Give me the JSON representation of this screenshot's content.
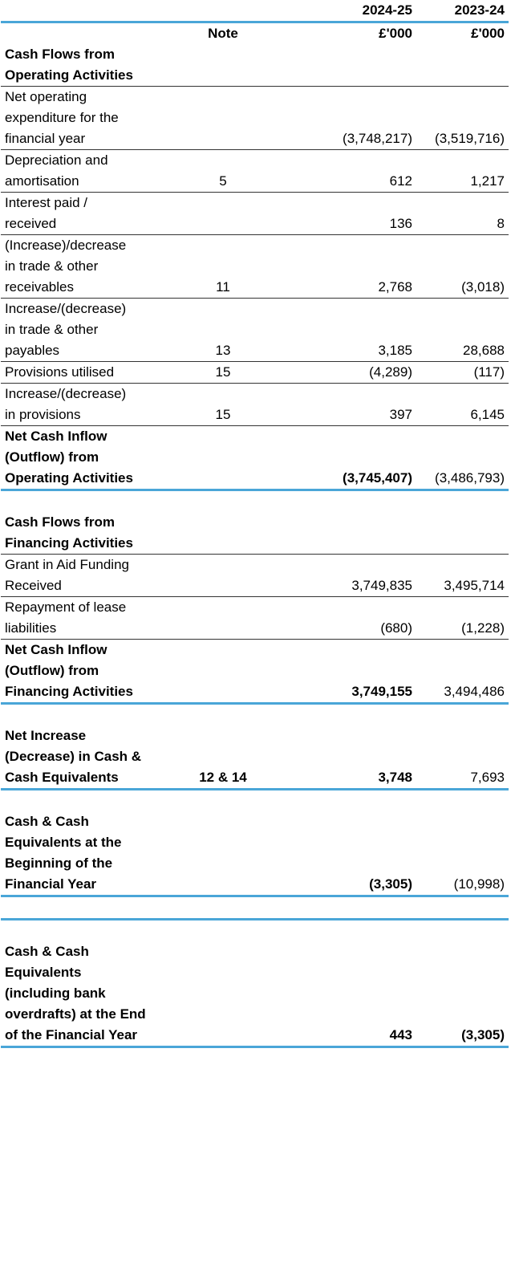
{
  "columns": {
    "years": [
      "",
      "",
      "2024-25",
      "2023-24"
    ],
    "units": [
      "",
      "Note",
      "£'000",
      "£'000"
    ]
  },
  "rows": [
    {
      "t": "bold",
      "label": [
        "Cash Flows from",
        "Operating Activities"
      ]
    },
    {
      "t": "line",
      "label": [
        "Net operating",
        "expenditure for the",
        "financial year"
      ],
      "note": "",
      "cur": "(3,748,217)",
      "prior": "(3,519,716)"
    },
    {
      "t": "line",
      "label": [
        "Depreciation and",
        "amortisation"
      ],
      "note": "5",
      "cur": "612",
      "prior": "1,217"
    },
    {
      "t": "line",
      "label": [
        "Interest paid /",
        "received"
      ],
      "note": "",
      "cur": "136",
      "prior": "8"
    },
    {
      "t": "line",
      "label": [
        "(Increase)/decrease",
        "in trade & other",
        "receivables"
      ],
      "note": "11",
      "cur": "2,768",
      "prior": "(3,018)"
    },
    {
      "t": "line",
      "label": [
        "Increase/(decrease)",
        "in trade & other",
        "payables"
      ],
      "note": "13",
      "cur": "3,185",
      "prior": "28,688"
    },
    {
      "t": "line",
      "label": [
        "Provisions utilised"
      ],
      "note": "15",
      "cur": "(4,289)",
      "prior": "(117)"
    },
    {
      "t": "line",
      "label": [
        "Increase/(decrease)",
        "in provisions"
      ],
      "note": "15",
      "cur": "397",
      "prior": "6,145"
    },
    {
      "t": "total",
      "label": [
        "Net Cash Inflow",
        "(Outflow) from",
        "Operating Activities"
      ],
      "note": "",
      "cur": "(3,745,407)",
      "prior": "(3,486,793)"
    },
    {
      "t": "blank"
    },
    {
      "t": "bold",
      "label": [
        "Cash Flows from",
        "Financing Activities"
      ]
    },
    {
      "t": "line",
      "label": [
        "Grant in Aid Funding",
        "Received"
      ],
      "note": "",
      "cur": "3,749,835",
      "prior": "3,495,714"
    },
    {
      "t": "line",
      "label": [
        "Repayment of lease",
        "liabilities"
      ],
      "note": "",
      "cur": "(680)",
      "prior": "(1,228)"
    },
    {
      "t": "total",
      "label": [
        "Net Cash Inflow",
        "(Outflow) from",
        "Financing Activities"
      ],
      "note": "",
      "cur": "3,749,155",
      "prior": "3,494,486"
    },
    {
      "t": "blank"
    },
    {
      "t": "total",
      "label": [
        "Net Increase",
        "(Decrease) in Cash &",
        "Cash Equivalents"
      ],
      "note": "12 & 14",
      "cur": "3,748",
      "prior": "7,693"
    },
    {
      "t": "blank"
    },
    {
      "t": "total",
      "label": [
        "Cash & Cash",
        "Equivalents at the",
        "Beginning of the",
        "Financial Year"
      ],
      "note": "",
      "cur": "(3,305)",
      "prior": "(10,998)"
    },
    {
      "t": "blank"
    },
    {
      "t": "blank"
    },
    {
      "t": "final",
      "label": [
        "Cash & Cash",
        "Equivalents",
        "(including bank",
        "overdrafts) at the End",
        "of the Financial Year"
      ],
      "note": "",
      "cur": "443",
      "prior": "(3,305)"
    }
  ]
}
